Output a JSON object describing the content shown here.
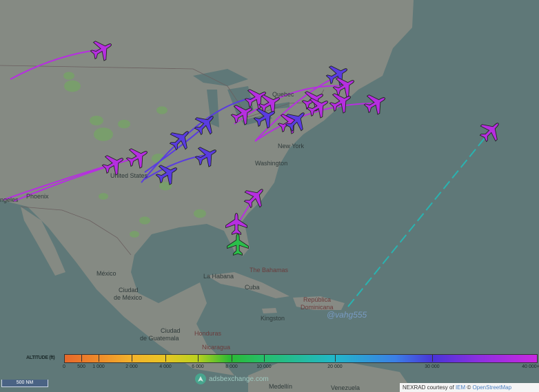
{
  "map": {
    "labels": {
      "los_angeles": "ngeles",
      "phoenix": "Phoenix",
      "united_states": "United States",
      "quebec": "Quebec",
      "new_york": "New York",
      "washington": "Washington",
      "mexico": "México",
      "ciudad_mexico_1": "Ciudad",
      "ciudad_mexico_2": "de México",
      "la_habana": "La Habana",
      "cuba": "Cuba",
      "bahamas": "The Bahamas",
      "rep_dom_1": "República",
      "rep_dom_2": "Dominicana",
      "kingston": "Kingston",
      "guatemala_1": "Ciudad",
      "guatemala_2": "de Guatemala",
      "honduras": "Honduras",
      "nicaragua": "Nicaragua",
      "medellin": "Medellín",
      "venezuela": "Venezuela"
    },
    "watermark": "@vahg555",
    "colors": {
      "water": "#5f7878",
      "land": "#858a83",
      "aircraft_high": "#b62fe0",
      "aircraft_mid": "#5a3ce0",
      "aircraft_low": "#2bbf4a",
      "trail_ocean": "#2ab3b0"
    }
  },
  "legend": {
    "title": "ALTITUDE (ft)",
    "ticks": [
      "0",
      "500",
      "1 000",
      "2 000",
      "4 000",
      "6 000",
      "8 000",
      "10 000",
      "20 000",
      "30 000",
      "40 000+"
    ]
  },
  "scale": {
    "label": "500 NM"
  },
  "brand": {
    "name": "adsbexchange.com"
  },
  "attribution": {
    "prefix": "NEXRAD courtesy of",
    "iem": "IEM",
    "copy": "©",
    "osm": "OpenStreetMap"
  }
}
